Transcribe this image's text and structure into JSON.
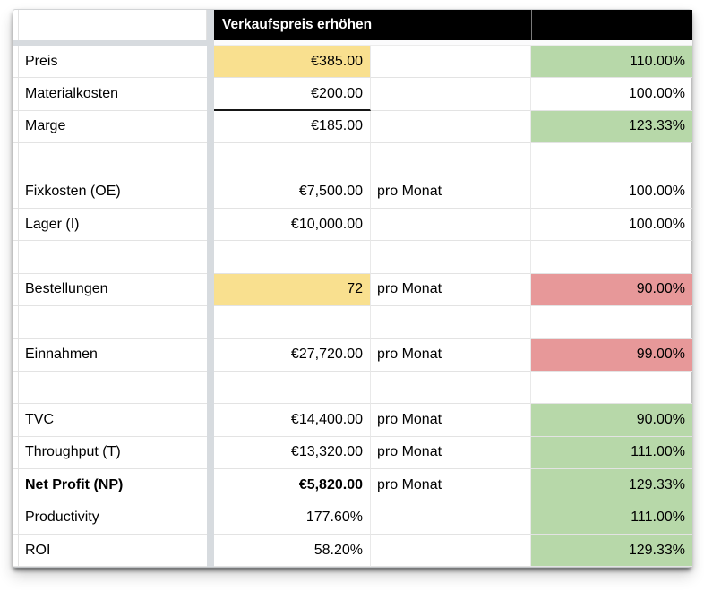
{
  "sheet": {
    "header_title": "Verkaufspreis erhöhen"
  },
  "colors": {
    "header_bg": "#000000",
    "header_text": "#ffffff",
    "yellow": "#f9e08f",
    "green": "#b7d8a9",
    "red": "#e79899"
  },
  "rows": [
    {
      "label": "Preis",
      "value": "€385.00",
      "unit": "",
      "percent": "110.00%",
      "value_bg": "yellow",
      "percent_bg": "green"
    },
    {
      "label": "Materialkosten",
      "value": "€200.00",
      "unit": "",
      "percent": "100.00%",
      "value_underline": true
    },
    {
      "label": "Marge",
      "value": "€185.00",
      "unit": "",
      "percent": "123.33%",
      "percent_bg": "green"
    },
    {
      "label": "",
      "value": "",
      "unit": "",
      "percent": ""
    },
    {
      "label": "Fixkosten (OE)",
      "value": "€7,500.00",
      "unit": "pro Monat",
      "percent": "100.00%"
    },
    {
      "label": "Lager (I)",
      "value": "€10,000.00",
      "unit": "",
      "percent": "100.00%"
    },
    {
      "label": "",
      "value": "",
      "unit": "",
      "percent": ""
    },
    {
      "label": "Bestellungen",
      "value": "72",
      "unit": "pro Monat",
      "percent": "90.00%",
      "value_bg": "yellow",
      "percent_bg": "red"
    },
    {
      "label": "",
      "value": "",
      "unit": "",
      "percent": ""
    },
    {
      "label": "Einnahmen",
      "value": "€27,720.00",
      "unit": "pro Monat",
      "percent": "99.00%",
      "percent_bg": "red"
    },
    {
      "label": "",
      "value": "",
      "unit": "",
      "percent": ""
    },
    {
      "label": "TVC",
      "value": "€14,400.00",
      "unit": "pro Monat",
      "percent": "90.00%",
      "percent_bg": "green"
    },
    {
      "label": "Throughput (T)",
      "value": "€13,320.00",
      "unit": "pro Monat",
      "percent": "111.00%",
      "percent_bg": "green"
    },
    {
      "label": "Net Profit (NP)",
      "value": "€5,820.00",
      "unit": "pro Monat",
      "percent": "129.33%",
      "percent_bg": "green",
      "bold": true
    },
    {
      "label": "Productivity",
      "value": "177.60%",
      "unit": "",
      "percent": "111.00%",
      "percent_bg": "green"
    },
    {
      "label": "ROI",
      "value": "58.20%",
      "unit": "",
      "percent": "129.33%",
      "percent_bg": "green"
    }
  ]
}
